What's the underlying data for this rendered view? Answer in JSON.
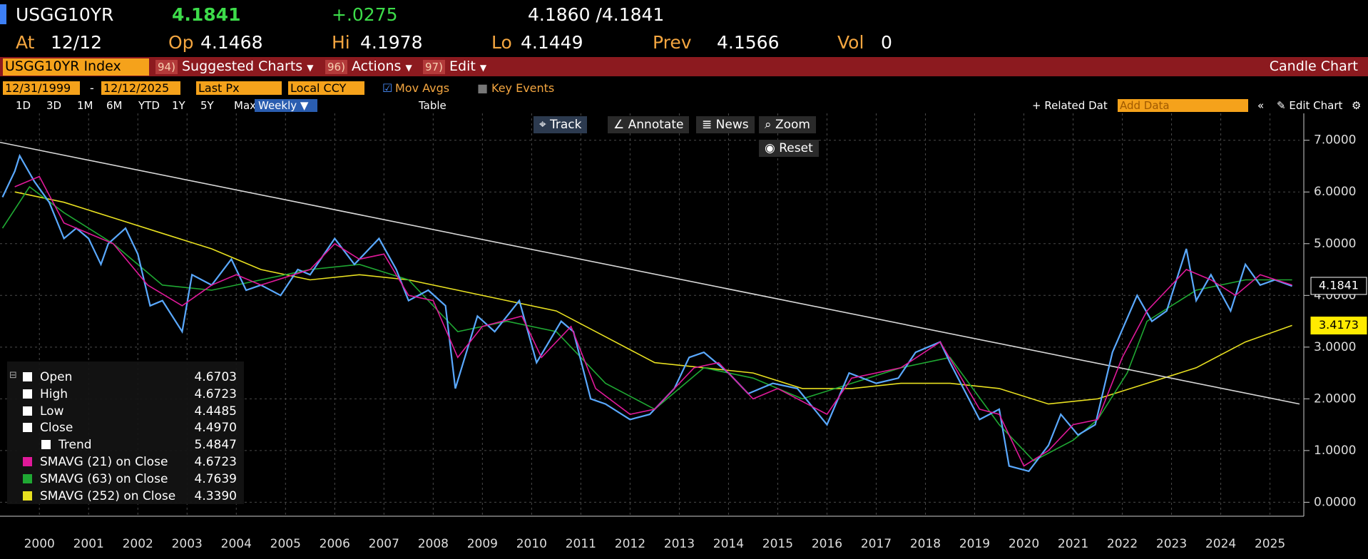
{
  "header": {
    "ticker": "USGG10YR",
    "last": "4.1841",
    "change": "+.0275",
    "bid_ask": "4.1860 /4.1841"
  },
  "quote": {
    "at_label": "At",
    "at": "12/12",
    "op_label": "Op",
    "op": "4.1468",
    "hi_label": "Hi",
    "hi": "4.1978",
    "lo_label": "Lo",
    "lo": "4.1449",
    "prev_label": "Prev",
    "prev": "4.1566",
    "vol_label": "Vol",
    "vol": "0"
  },
  "menu": {
    "security": "USGG10YR Index",
    "items": [
      {
        "code": "94)",
        "label": "Suggested Charts"
      },
      {
        "code": "96)",
        "label": "Actions"
      },
      {
        "code": "97)",
        "label": "Edit"
      }
    ],
    "chart_type": "Candle Chart"
  },
  "settings": {
    "start": "12/31/1999",
    "separator": "-",
    "end": "12/12/2025",
    "field": "Last Px",
    "currency": "Local CCY",
    "mov_avgs": "Mov Avgs",
    "key_events": "Key Events"
  },
  "periods": [
    "1D",
    "3D",
    "1M",
    "6M",
    "YTD",
    "1Y",
    "5Y",
    "Max"
  ],
  "frequency": "Weekly",
  "table": "Table",
  "related": "Related Dat",
  "add_data": "Add Data",
  "edit_chart": "Edit Chart",
  "tools": [
    "Track",
    "Annotate",
    "News",
    "Zoom"
  ],
  "reset": "Reset",
  "chart_data": {
    "type": "line",
    "xlim": [
      1999.7,
      2026.1
    ],
    "ylim": [
      -0.27,
      7.52
    ],
    "xticks": [
      {
        "value": 2000.5,
        "label": "2000"
      },
      {
        "value": 2001.5,
        "label": "2001"
      },
      {
        "value": 2002.5,
        "label": "2002"
      },
      {
        "value": 2003.5,
        "label": "2003"
      },
      {
        "value": 2004.5,
        "label": "2004"
      },
      {
        "value": 2005.5,
        "label": "2005"
      },
      {
        "value": 2006.5,
        "label": "2006"
      },
      {
        "value": 2007.5,
        "label": "2007"
      },
      {
        "value": 2008.5,
        "label": "2008"
      },
      {
        "value": 2009.5,
        "label": "2009"
      },
      {
        "value": 2010.5,
        "label": "2010"
      },
      {
        "value": 2011.5,
        "label": "2011"
      },
      {
        "value": 2012.5,
        "label": "2012"
      },
      {
        "value": 2013.5,
        "label": "2013"
      },
      {
        "value": 2014.5,
        "label": "2014"
      },
      {
        "value": 2015.5,
        "label": "2015"
      },
      {
        "value": 2016.5,
        "label": "2016"
      },
      {
        "value": 2017.5,
        "label": "2017"
      },
      {
        "value": 2018.5,
        "label": "2018"
      },
      {
        "value": 2019.5,
        "label": "2019"
      },
      {
        "value": 2020.5,
        "label": "2020"
      },
      {
        "value": 2021.5,
        "label": "2021"
      },
      {
        "value": 2022.5,
        "label": "2022"
      },
      {
        "value": 2023.5,
        "label": "2023"
      },
      {
        "value": 2024.5,
        "label": "2024"
      },
      {
        "value": 2025.5,
        "label": "2025"
      }
    ],
    "yticks": [
      {
        "value": 0,
        "label": "0.0000"
      },
      {
        "value": 1,
        "label": "1.0000"
      },
      {
        "value": 2,
        "label": "2.0000"
      },
      {
        "value": 3,
        "label": "3.0000"
      },
      {
        "value": 4,
        "label": "4.0000"
      },
      {
        "value": 5,
        "label": "5.0000"
      },
      {
        "value": 6,
        "label": "6.0000"
      },
      {
        "value": 7,
        "label": "7.0000"
      }
    ],
    "grid": true,
    "series": [
      {
        "name": "Close",
        "legend_value": "4.4970",
        "color": "#5aa9ff",
        "x": [
          1999.75,
          2000.0,
          2000.1,
          2000.4,
          2000.7,
          2001.0,
          2001.25,
          2001.5,
          2001.75,
          2001.9,
          2002.25,
          2002.5,
          2002.75,
          2003.0,
          2003.4,
          2003.6,
          2004.0,
          2004.4,
          2004.7,
          2005.0,
          2005.4,
          2005.75,
          2006.0,
          2006.5,
          2006.9,
          2007.4,
          2007.75,
          2008.0,
          2008.4,
          2008.75,
          2008.95,
          2009.4,
          2009.75,
          2010.25,
          2010.6,
          2011.1,
          2011.35,
          2011.7,
          2012.0,
          2012.5,
          2012.9,
          2013.4,
          2013.7,
          2014.0,
          2014.5,
          2014.9,
          2015.4,
          2015.9,
          2016.5,
          2016.95,
          2017.5,
          2017.95,
          2018.3,
          2018.8,
          2019.0,
          2019.6,
          2020.0,
          2020.2,
          2020.6,
          2021.0,
          2021.25,
          2021.6,
          2021.95,
          2022.3,
          2022.8,
          2023.1,
          2023.4,
          2023.8,
          2024.0,
          2024.3,
          2024.7,
          2025.0,
          2025.3,
          2025.6,
          2025.95
        ],
        "values": [
          5.9,
          6.4,
          6.7,
          6.2,
          5.8,
          5.1,
          5.3,
          5.1,
          4.6,
          5.0,
          5.3,
          4.8,
          3.8,
          3.9,
          3.3,
          4.4,
          4.2,
          4.7,
          4.1,
          4.2,
          4.0,
          4.5,
          4.4,
          5.1,
          4.6,
          5.1,
          4.5,
          3.9,
          4.1,
          3.8,
          2.2,
          3.6,
          3.3,
          3.9,
          2.7,
          3.5,
          3.3,
          2.0,
          1.9,
          1.6,
          1.7,
          2.2,
          2.8,
          2.9,
          2.5,
          2.1,
          2.3,
          2.2,
          1.5,
          2.5,
          2.3,
          2.4,
          2.9,
          3.1,
          2.7,
          1.6,
          1.8,
          0.7,
          0.6,
          1.1,
          1.7,
          1.3,
          1.5,
          2.9,
          4.0,
          3.5,
          3.7,
          4.9,
          3.9,
          4.4,
          3.7,
          4.6,
          4.2,
          4.3,
          4.18
        ]
      },
      {
        "name": "Trend",
        "legend_value": "5.4847",
        "color": "#d8d8d8",
        "x": [
          1999.7,
          2026.1
        ],
        "values": [
          6.96,
          1.9
        ]
      },
      {
        "name": "SMAVG (21)  on Close",
        "legend_value": "4.6723",
        "color": "#e0199a",
        "x": [
          2000.0,
          2000.5,
          2001.0,
          2002.0,
          2002.7,
          2003.4,
          2004.0,
          2004.5,
          2005.0,
          2006.0,
          2006.5,
          2007.0,
          2007.5,
          2008.0,
          2008.5,
          2009.0,
          2009.5,
          2010.3,
          2010.7,
          2011.3,
          2011.8,
          2012.5,
          2013.0,
          2013.8,
          2014.3,
          2015.0,
          2015.5,
          2016.5,
          2017.0,
          2018.0,
          2018.8,
          2019.6,
          2020.0,
          2020.5,
          2021.0,
          2021.5,
          2022.0,
          2022.5,
          2023.0,
          2023.8,
          2024.3,
          2024.8,
          2025.3,
          2025.95
        ],
        "values": [
          6.1,
          6.3,
          5.4,
          5.0,
          4.2,
          3.8,
          4.2,
          4.4,
          4.2,
          4.5,
          5.0,
          4.7,
          4.8,
          4.0,
          3.9,
          2.8,
          3.4,
          3.6,
          2.8,
          3.4,
          2.2,
          1.7,
          1.8,
          2.6,
          2.7,
          2.0,
          2.2,
          1.7,
          2.4,
          2.6,
          3.1,
          1.8,
          1.7,
          0.7,
          1.0,
          1.5,
          1.6,
          2.8,
          3.7,
          4.5,
          4.3,
          4.0,
          4.4,
          4.2
        ]
      },
      {
        "name": "SMAVG (63)  on Close",
        "legend_value": "4.7639",
        "color": "#1fa833",
        "x": [
          1999.75,
          2000.3,
          2001.0,
          2002.0,
          2003.0,
          2004.0,
          2005.0,
          2006.0,
          2007.0,
          2008.0,
          2009.0,
          2010.0,
          2011.0,
          2012.0,
          2013.0,
          2014.0,
          2015.0,
          2016.0,
          2017.0,
          2018.0,
          2019.0,
          2020.0,
          2020.7,
          2021.5,
          2022.0,
          2022.6,
          2023.0,
          2024.0,
          2025.0,
          2025.95
        ],
        "values": [
          5.3,
          6.1,
          5.6,
          5.0,
          4.2,
          4.1,
          4.3,
          4.5,
          4.6,
          4.3,
          3.3,
          3.5,
          3.3,
          2.3,
          1.8,
          2.6,
          2.4,
          2.0,
          2.3,
          2.6,
          2.8,
          1.5,
          0.8,
          1.2,
          1.6,
          2.5,
          3.5,
          4.1,
          4.3,
          4.3
        ]
      },
      {
        "name": "SMAVG (252)  on Close",
        "legend_value": "4.3390",
        "color": "#e8e020",
        "x": [
          2000.0,
          2001.0,
          2002.0,
          2003.0,
          2004.0,
          2005.0,
          2006.0,
          2007.0,
          2008.0,
          2009.0,
          2010.0,
          2011.0,
          2012.0,
          2013.0,
          2014.0,
          2015.0,
          2016.0,
          2017.0,
          2018.0,
          2019.0,
          2020.0,
          2021.0,
          2022.0,
          2023.0,
          2024.0,
          2025.0,
          2025.95
        ],
        "values": [
          6.0,
          5.8,
          5.5,
          5.2,
          4.9,
          4.5,
          4.3,
          4.4,
          4.3,
          4.1,
          3.9,
          3.7,
          3.2,
          2.7,
          2.6,
          2.5,
          2.2,
          2.2,
          2.3,
          2.3,
          2.2,
          1.9,
          2.0,
          2.3,
          2.6,
          3.1,
          3.42
        ]
      }
    ],
    "legend_extra": [
      {
        "name": "Open",
        "value": "4.6703"
      },
      {
        "name": "High",
        "value": "4.6723"
      },
      {
        "name": "Low",
        "value": "4.4485"
      }
    ],
    "last_labels": [
      {
        "value": 4.1841,
        "label": "4.1841",
        "color": "#ffffff"
      },
      {
        "value": 3.4173,
        "label": "3.4173",
        "color": "#ffeb00"
      }
    ]
  }
}
